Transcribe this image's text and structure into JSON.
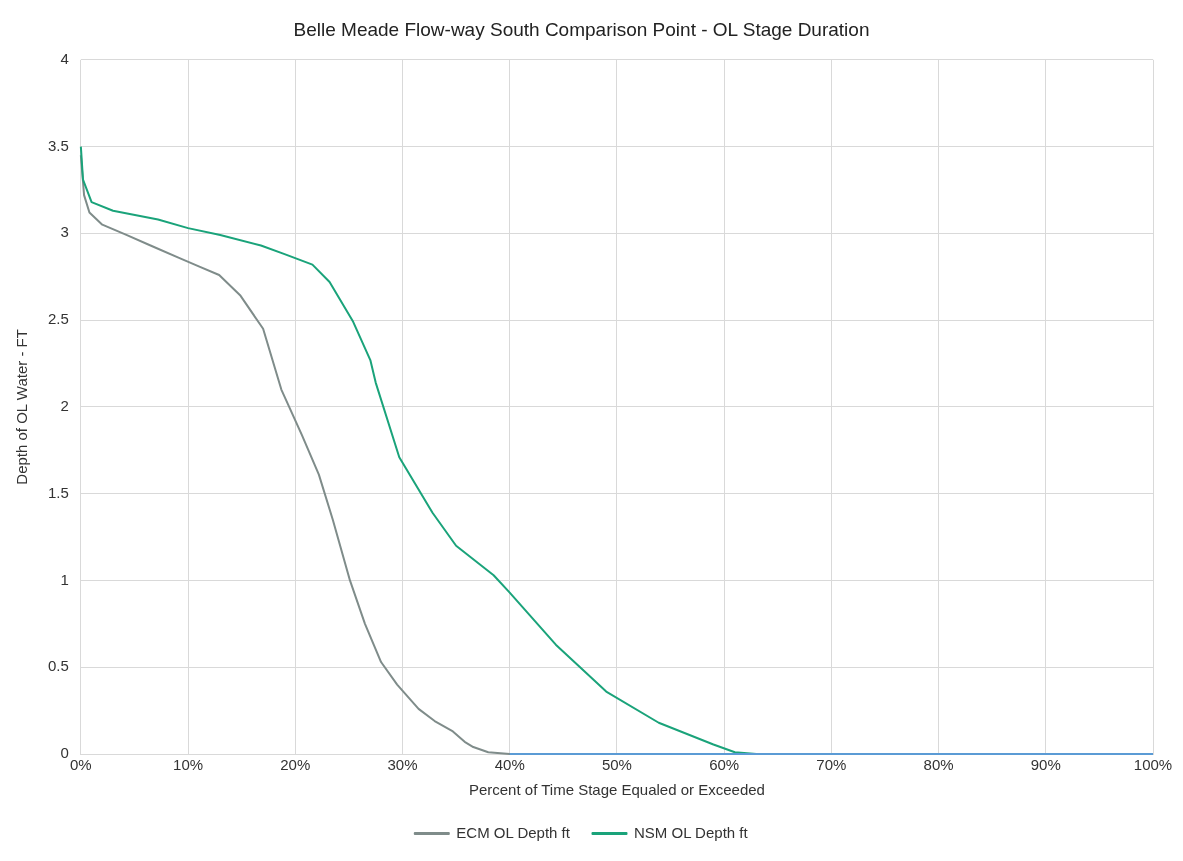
{
  "chart_data": {
    "type": "line",
    "title": "Belle Meade Flow-way South Comparison Point - OL Stage Duration",
    "xlabel": "Percent of Time Stage Equaled or Exceeded",
    "ylabel": "Depth of OL Water - FT",
    "xlim": [
      0,
      100
    ],
    "xticks": [
      {
        "value": 0,
        "label": "0%"
      },
      {
        "value": 10,
        "label": "10%"
      },
      {
        "value": 20,
        "label": "20%"
      },
      {
        "value": 30,
        "label": "30%"
      },
      {
        "value": 40,
        "label": "40%"
      },
      {
        "value": 50,
        "label": "50%"
      },
      {
        "value": 60,
        "label": "60%"
      },
      {
        "value": 70,
        "label": "70%"
      },
      {
        "value": 80,
        "label": "80%"
      },
      {
        "value": 90,
        "label": "90%"
      },
      {
        "value": 100,
        "label": "100%"
      }
    ],
    "ylim": [
      0,
      4
    ],
    "yticks": [
      0,
      0.5,
      1,
      1.5,
      2,
      2.5,
      3,
      3.5,
      4
    ],
    "grid": true,
    "legend": "bottom",
    "marker": "none",
    "line_style": "solid",
    "series": [
      {
        "name": "ECM OL Depth ft",
        "color": "#7f8c8a",
        "x": [
          0,
          0.3,
          0.8,
          2,
          4.3,
          6.5,
          9.1,
          11,
          12.9,
          14.9,
          17,
          18.7,
          20.6,
          22.2,
          23.5,
          25.1,
          26.5,
          28,
          29.5,
          31.5,
          33,
          34.7,
          35.8,
          36.6,
          38,
          40,
          100
        ],
        "values": [
          3.45,
          3.22,
          3.12,
          3.05,
          2.99,
          2.93,
          2.86,
          2.81,
          2.76,
          2.64,
          2.45,
          2.1,
          1.84,
          1.61,
          1.35,
          1.0,
          0.75,
          0.53,
          0.4,
          0.26,
          0.19,
          0.13,
          0.07,
          0.04,
          0.01,
          0,
          0
        ]
      },
      {
        "name": "NSM OL Depth ft",
        "color": "#1aa37a",
        "x": [
          0,
          0.2,
          1,
          3,
          7.2,
          10,
          13,
          16.8,
          19,
          21.6,
          23.2,
          25.4,
          27,
          27.5,
          29.7,
          32.8,
          35,
          38.5,
          40,
          44.3,
          49,
          53.9,
          59,
          61,
          63,
          100
        ],
        "values": [
          3.5,
          3.31,
          3.18,
          3.13,
          3.08,
          3.03,
          2.99,
          2.93,
          2.88,
          2.82,
          2.72,
          2.49,
          2.27,
          2.14,
          1.71,
          1.39,
          1.2,
          1.03,
          0.93,
          0.63,
          0.36,
          0.18,
          0.055,
          0.01,
          0,
          0
        ]
      },
      {
        "color": "#5b9bd5",
        "x": [
          40,
          100
        ],
        "values": [
          0,
          0
        ]
      }
    ]
  }
}
